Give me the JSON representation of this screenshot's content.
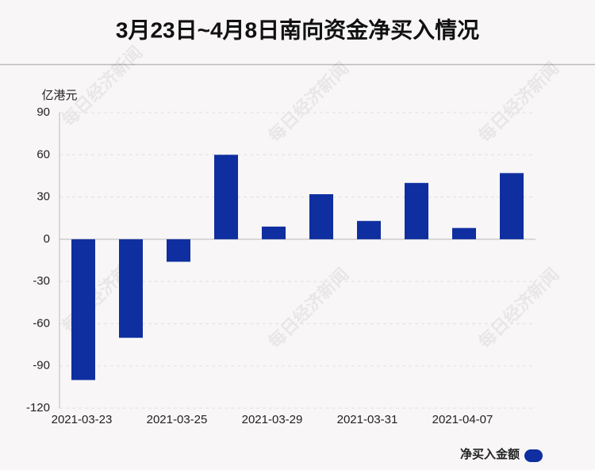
{
  "chart_data": {
    "type": "bar",
    "title": "3月23日~4月8日南向资金净买入情况",
    "y_label": "亿港元",
    "categories": [
      "2021-03-23",
      null,
      "2021-03-25",
      null,
      "2021-03-29",
      null,
      "2021-03-31",
      null,
      "2021-04-07",
      null
    ],
    "series": [
      {
        "name": "净买入金额",
        "color": "#0f2fa0",
        "values": [
          -100,
          -70,
          -16,
          60,
          9,
          32,
          13,
          40,
          8,
          47
        ]
      }
    ],
    "ylim": [
      -120,
      90
    ],
    "yticks": [
      -120,
      -90,
      -60,
      -30,
      0,
      30,
      60,
      90
    ],
    "grid": true,
    "legend": "bottom-right",
    "watermark": "每日经济新闻"
  }
}
